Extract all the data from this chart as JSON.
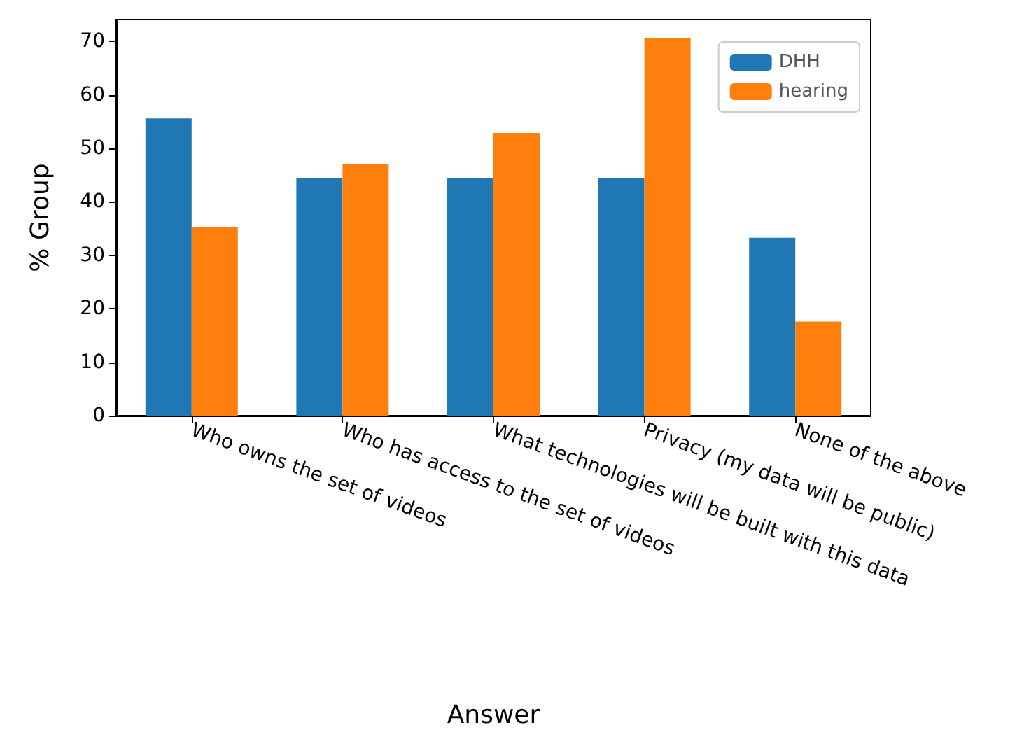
{
  "chart_data": {
    "type": "bar",
    "xlabel": "Answer",
    "ylabel": "% Group",
    "categories": [
      "Who owns the set of videos",
      "Who has access to the set of videos",
      "What technologies will be built with this data",
      "Privacy (my data will be public)",
      "None of the above"
    ],
    "series": [
      {
        "name": "DHH",
        "color": "#1f77b4",
        "values": [
          55.6,
          44.4,
          44.4,
          44.4,
          33.3
        ]
      },
      {
        "name": "hearing",
        "color": "#ff7f0e",
        "values": [
          35.3,
          47.1,
          52.9,
          70.6,
          17.6
        ]
      }
    ],
    "ylim": [
      0,
      74.1
    ],
    "yticks": [
      0,
      10,
      20,
      30,
      40,
      50,
      60,
      70
    ],
    "grid": false,
    "legend": "top right"
  }
}
